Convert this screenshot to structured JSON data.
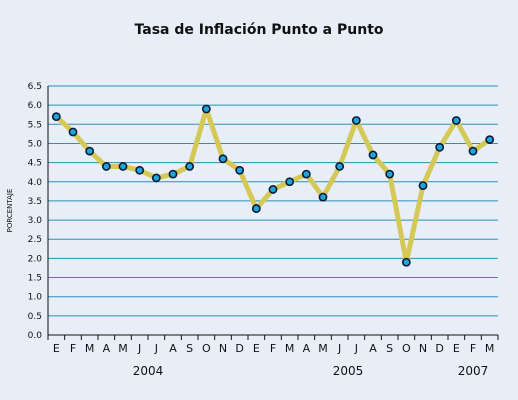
{
  "chart_data": {
    "type": "line",
    "title": "Tasa de Inflación Punto a Punto",
    "ylabel": "PORCENTAJE",
    "xlabel": "",
    "ylim": [
      0,
      6.5
    ],
    "y_ticks": [
      "0.0",
      "0.5",
      "1.0",
      "1.5",
      "2.0",
      "2.5",
      "3.0",
      "3.5",
      "4.0",
      "4.5",
      "5.0",
      "5.5",
      "6.0",
      "6.5"
    ],
    "categories": [
      "E",
      "F",
      "M",
      "A",
      "M",
      "J",
      "J",
      "A",
      "S",
      "O",
      "N",
      "D",
      "E",
      "F",
      "M",
      "A",
      "M",
      "J",
      "J",
      "A",
      "S",
      "O",
      "N",
      "D",
      "E",
      "F",
      "M"
    ],
    "year_labels": [
      {
        "label": "2004",
        "start_index": 0,
        "end_index": 11
      },
      {
        "label": "2005",
        "start_index": 12,
        "end_index": 23
      },
      {
        "label": "2007",
        "start_index": 24,
        "end_index": 26
      }
    ],
    "series": [
      {
        "values": [
          5.7,
          5.3,
          4.8,
          4.4,
          4.4,
          4.3,
          4.1,
          4.2,
          4.4,
          5.9,
          4.6,
          4.3,
          3.3,
          3.8,
          4.0,
          4.2,
          3.6,
          4.4,
          5.6,
          4.7,
          4.2,
          1.9,
          3.9,
          4.9,
          5.6,
          4.8,
          5.1
        ]
      }
    ],
    "grid": true,
    "colors": {
      "line": "#d4c956",
      "marker_fill": "#1fa6d8",
      "marker_stroke": "#0a1a3a",
      "grid": "#2f8fb5",
      "background": "#e8eef8"
    }
  }
}
